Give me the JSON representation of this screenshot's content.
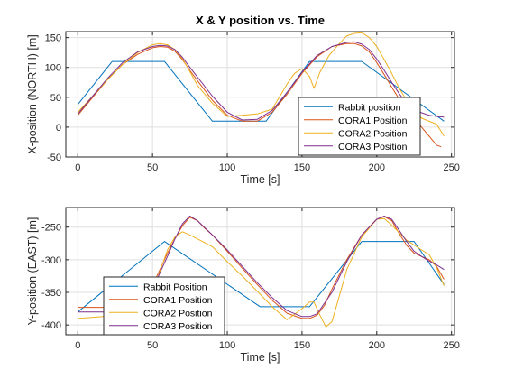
{
  "chart_data": [
    {
      "type": "line",
      "title": "X & Y position vs. Time",
      "xlabel": "Time [s]",
      "ylabel": "X-position (NORTH) [m]",
      "xlim": [
        -8,
        252
      ],
      "ylim": [
        -50,
        160
      ],
      "xticks": [
        "0",
        "50",
        "100",
        "150",
        "200",
        "250"
      ],
      "yticks": [
        "-50",
        "0",
        "50",
        "100",
        "150"
      ],
      "grid": true,
      "legend_location": "bottom-right",
      "series": [
        {
          "name": "Rabbit position",
          "color": "#0072BD",
          "x": [
            0,
            23,
            58,
            90,
            126,
            155,
            190,
            245
          ],
          "y": [
            38,
            110,
            110,
            10,
            10,
            110,
            110,
            10
          ]
        },
        {
          "name": "CORA1 Position",
          "color": "#D95319",
          "x": [
            0,
            10,
            20,
            30,
            40,
            50,
            55,
            60,
            65,
            70,
            75,
            80,
            90,
            100,
            110,
            120,
            130,
            140,
            150,
            160,
            170,
            180,
            185,
            190,
            195,
            200,
            205,
            210,
            215,
            220,
            225,
            230,
            235,
            240,
            243
          ],
          "y": [
            20,
            50,
            80,
            105,
            122,
            133,
            135,
            134,
            127,
            113,
            95,
            78,
            45,
            20,
            10,
            10,
            25,
            55,
            90,
            118,
            135,
            140,
            140,
            136,
            126,
            108,
            88,
            67,
            47,
            30,
            15,
            0,
            -15,
            -30,
            -33
          ]
        },
        {
          "name": "CORA2 Position",
          "color": "#EDB120",
          "x": [
            0,
            10,
            20,
            30,
            40,
            50,
            55,
            60,
            65,
            70,
            75,
            80,
            90,
            100,
            110,
            120,
            130,
            140,
            145,
            150,
            155,
            158,
            162,
            168,
            175,
            180,
            185,
            190,
            195,
            200,
            205,
            210,
            215,
            220,
            230,
            240,
            245
          ],
          "y": [
            25,
            52,
            80,
            105,
            125,
            138,
            140,
            138,
            130,
            115,
            93,
            70,
            40,
            18,
            20,
            22,
            30,
            72,
            90,
            98,
            85,
            65,
            92,
            120,
            140,
            153,
            157,
            158,
            150,
            135,
            113,
            90,
            65,
            45,
            15,
            5,
            -15
          ]
        },
        {
          "name": "CORA3 Position",
          "color": "#7E2F8E",
          "x": [
            0,
            10,
            20,
            30,
            40,
            50,
            55,
            60,
            65,
            70,
            75,
            80,
            90,
            100,
            110,
            120,
            130,
            140,
            150,
            160,
            170,
            180,
            185,
            190,
            195,
            200,
            205,
            210,
            215,
            220,
            225,
            230,
            235,
            240,
            245
          ],
          "y": [
            22,
            52,
            82,
            108,
            126,
            135,
            137,
            136,
            130,
            117,
            100,
            84,
            52,
            25,
            12,
            13,
            28,
            58,
            92,
            120,
            135,
            142,
            143,
            139,
            130,
            114,
            95,
            75,
            56,
            40,
            30,
            24,
            20,
            18,
            17
          ]
        }
      ]
    },
    {
      "type": "line",
      "title": "",
      "xlabel": "Time [s]",
      "ylabel": "Y-position (EAST) [m]",
      "xlim": [
        -8,
        252
      ],
      "ylim": [
        -415,
        -220
      ],
      "xticks": [
        "0",
        "50",
        "100",
        "150",
        "200",
        "250"
      ],
      "yticks": [
        "-250",
        "-300",
        "-350",
        "-400"
      ],
      "grid": true,
      "legend_location": "bottom-left",
      "series": [
        {
          "name": "Rabbit Position",
          "color": "#0072BD",
          "x": [
            0,
            58,
            122,
            155,
            190,
            225,
            245
          ],
          "y": [
            -380,
            -272,
            -372,
            -372,
            -272,
            -272,
            -338
          ]
        },
        {
          "name": "CORA1 Position",
          "color": "#D95319",
          "x": [
            0,
            40,
            50,
            60,
            65,
            70,
            75,
            80,
            85,
            90,
            100,
            110,
            120,
            130,
            140,
            150,
            155,
            160,
            165,
            170,
            180,
            190,
            200,
            205,
            210,
            215,
            220,
            225,
            230,
            235,
            240,
            245
          ],
          "y": [
            -373,
            -373,
            -340,
            -290,
            -268,
            -248,
            -235,
            -240,
            -252,
            -262,
            -287,
            -313,
            -338,
            -362,
            -382,
            -390,
            -390,
            -385,
            -370,
            -345,
            -300,
            -262,
            -238,
            -234,
            -240,
            -260,
            -278,
            -290,
            -295,
            -300,
            -310,
            -330
          ]
        },
        {
          "name": "CORA2 Position",
          "color": "#EDB120",
          "x": [
            0,
            40,
            48,
            55,
            60,
            65,
            70,
            75,
            80,
            90,
            100,
            110,
            120,
            130,
            140,
            150,
            155,
            158,
            162,
            166,
            170,
            175,
            180,
            190,
            200,
            205,
            210,
            220,
            230,
            235,
            240,
            245
          ],
          "y": [
            -390,
            -383,
            -365,
            -318,
            -285,
            -265,
            -257,
            -262,
            -268,
            -280,
            -303,
            -325,
            -348,
            -372,
            -392,
            -375,
            -365,
            -365,
            -385,
            -403,
            -395,
            -355,
            -315,
            -265,
            -238,
            -237,
            -247,
            -270,
            -285,
            -292,
            -312,
            -340
          ]
        },
        {
          "name": "CORA3 Position",
          "color": "#7E2F8E",
          "x": [
            0,
            40,
            50,
            60,
            65,
            70,
            75,
            80,
            90,
            100,
            110,
            120,
            130,
            140,
            150,
            155,
            160,
            170,
            180,
            190,
            200,
            205,
            210,
            215,
            220,
            225,
            230,
            235,
            240,
            245
          ],
          "y": [
            -380,
            -380,
            -345,
            -295,
            -268,
            -245,
            -233,
            -240,
            -262,
            -285,
            -310,
            -335,
            -358,
            -378,
            -387,
            -387,
            -383,
            -350,
            -303,
            -262,
            -238,
            -233,
            -238,
            -255,
            -272,
            -287,
            -295,
            -302,
            -308,
            -315
          ]
        }
      ]
    }
  ]
}
